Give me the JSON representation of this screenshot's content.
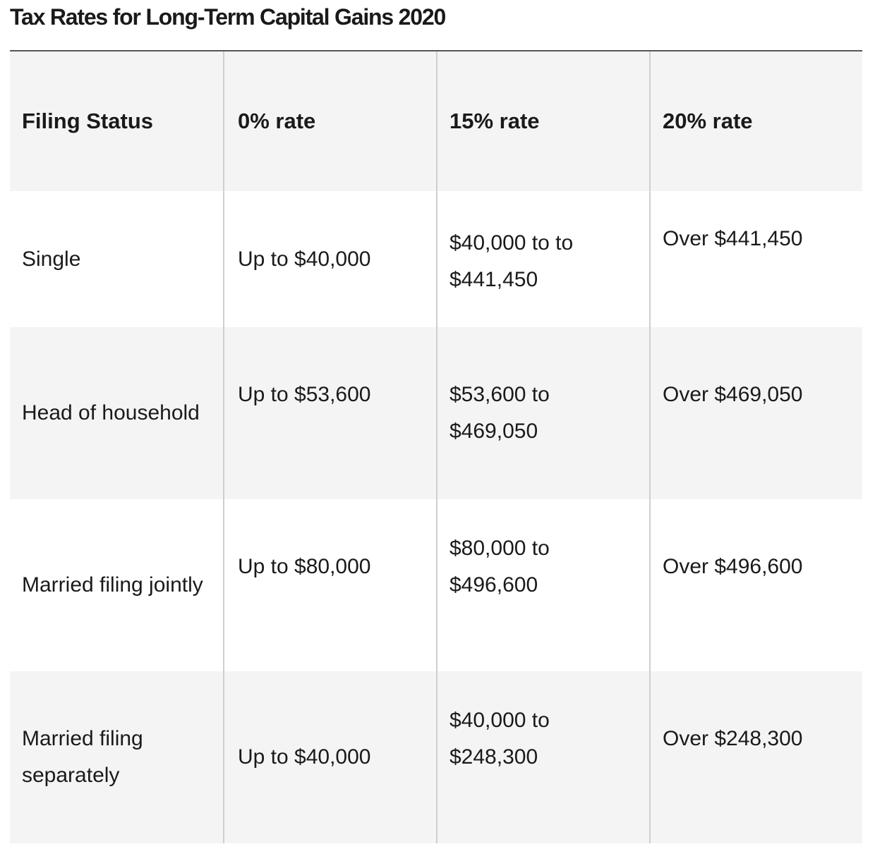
{
  "title": "Tax Rates for Long-Term Capital Gains 2020",
  "table": {
    "headers": [
      "Filing Status",
      "0% rate",
      "15% rate",
      "20% rate"
    ],
    "rows": [
      [
        "Single",
        "Up to $40,000",
        "$40,000 to to $441,450",
        "Over $441,450"
      ],
      [
        "Head of household",
        "Up to $53,600",
        "$53,600 to $469,050",
        "Over $469,050"
      ],
      [
        "Married filing jointly",
        "Up to $80,000",
        "$80,000 to $496,600",
        "Over $496,600"
      ],
      [
        "Married filing separately",
        "Up to $40,000",
        "$40,000 to $248,300",
        "Over $248,300"
      ]
    ]
  },
  "colors": {
    "shaded_row": "#f4f4f4",
    "divider": "#cfcfcf",
    "title_rule": "#555555"
  }
}
